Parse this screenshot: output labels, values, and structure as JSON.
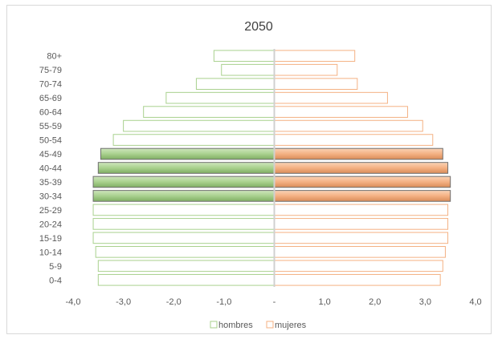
{
  "chart_data": {
    "type": "bar",
    "title": "2050",
    "orientation": "horizontal",
    "categories": [
      "0-4",
      "5-9",
      "10-14",
      "15-19",
      "20-24",
      "25-29",
      "30-34",
      "35-39",
      "40-44",
      "45-49",
      "50-54",
      "55-59",
      "60-64",
      "65-69",
      "70-74",
      "75-79",
      "80+"
    ],
    "series": [
      {
        "name": "hombres",
        "values": [
          -3.5,
          -3.5,
          -3.55,
          -3.6,
          -3.6,
          -3.6,
          -3.6,
          -3.6,
          -3.5,
          -3.45,
          -3.2,
          -3.0,
          -2.6,
          -2.15,
          -1.55,
          -1.05,
          -1.2
        ],
        "highlight": [
          false,
          false,
          false,
          false,
          false,
          false,
          true,
          true,
          true,
          true,
          false,
          false,
          false,
          false,
          false,
          false,
          false
        ]
      },
      {
        "name": "mujeres",
        "values": [
          3.3,
          3.35,
          3.4,
          3.45,
          3.45,
          3.45,
          3.5,
          3.5,
          3.45,
          3.35,
          3.15,
          2.95,
          2.65,
          2.25,
          1.65,
          1.25,
          1.6
        ],
        "highlight": [
          false,
          false,
          false,
          false,
          false,
          false,
          true,
          true,
          true,
          true,
          false,
          false,
          false,
          false,
          false,
          false,
          false
        ]
      }
    ],
    "xlim": [
      -4,
      4
    ],
    "xticks": [
      -4,
      -3,
      -2,
      -1,
      0,
      1,
      2,
      3,
      4
    ],
    "xtick_labels": [
      "-4,0",
      "-3,0",
      "-2,0",
      "-1,0",
      "-",
      "1,0",
      "2,0",
      "3,0",
      "4,0"
    ],
    "grid": false,
    "legend_position": "bottom",
    "colors": {
      "hombres_fill": "#a9d18e",
      "hombres_border": "#a9d18e",
      "mujeres_fill": "#f4b183",
      "mujeres_border": "#f4b183",
      "axis": "#d0d0d0",
      "text": "#595959"
    }
  }
}
